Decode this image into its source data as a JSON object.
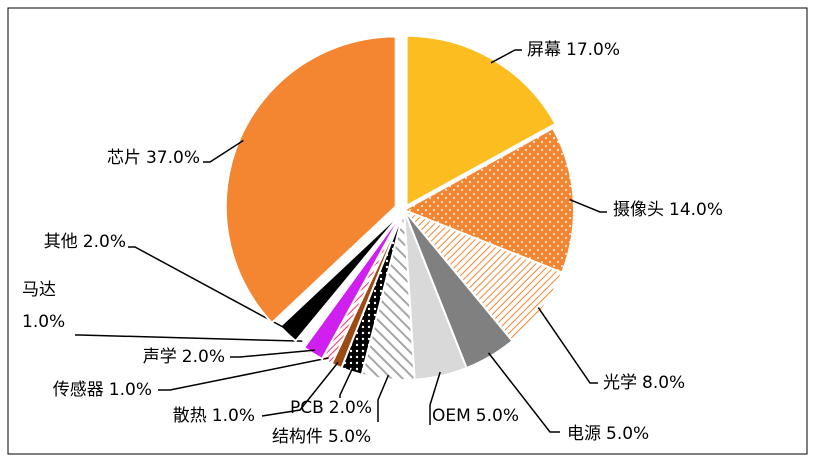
{
  "chart_data": {
    "type": "pie",
    "categories": [
      "屏幕",
      "摄像头",
      "光学",
      "电源",
      "OEM",
      "结构件",
      "PCB",
      "散热",
      "传感器",
      "声学",
      "马达",
      "其他",
      "芯片"
    ],
    "values": [
      17,
      14,
      8,
      5,
      5,
      5,
      2,
      1,
      1,
      2,
      1,
      2,
      37
    ],
    "value_labels": [
      "17.0%",
      "14.0%",
      "8.0%",
      "5.0%",
      "5.0%",
      "5.0%",
      "2.0%",
      "1.0%",
      "1.0%",
      "2.0%",
      "1.0%",
      "2.0%",
      "37.0%"
    ],
    "colors": [
      "#fbbd20",
      "#f58631",
      "#f58631",
      "#808080",
      "#d9d9d9",
      "#a6a6a6",
      "#000000",
      "#9c4a12",
      "#ff3366",
      "#d020f0",
      "#ffffff",
      "#000000",
      "#f58631"
    ]
  }
}
